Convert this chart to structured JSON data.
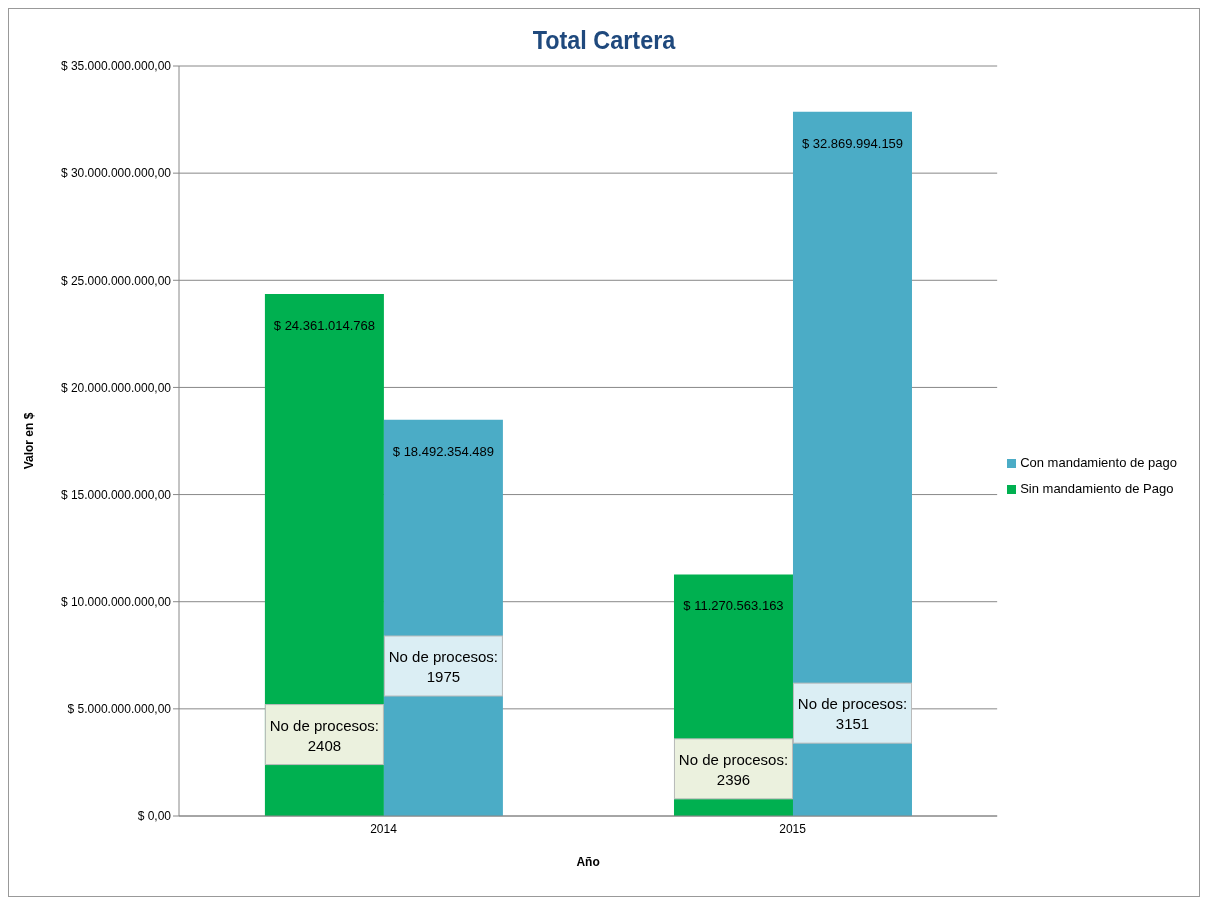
{
  "chart_data": {
    "type": "bar",
    "title": "Total Cartera",
    "xlabel": "Año",
    "ylabel": "Valor en $",
    "categories": [
      "2014",
      "2015"
    ],
    "series": [
      {
        "name": "Sin mandamiento de Pago",
        "color": "#00b050",
        "values": [
          24361014768,
          11270563163
        ],
        "value_labels": [
          "$ 24.361.014.768",
          "$ 11.270.563.163"
        ]
      },
      {
        "name": "Con mandamiento de pago",
        "color": "#4bacc6",
        "values": [
          18492354489,
          32869994159
        ],
        "value_labels": [
          "$ 18.492.354.489",
          "$ 32.869.994.159"
        ]
      }
    ],
    "ylim": [
      0,
      35000000000
    ],
    "yticks": [
      {
        "value": 0,
        "label": "$ 0,00"
      },
      {
        "value": 5000000000,
        "label": "$ 5.000.000.000,00"
      },
      {
        "value": 10000000000,
        "label": "$ 10.000.000.000,00"
      },
      {
        "value": 15000000000,
        "label": "$ 15.000.000.000,00"
      },
      {
        "value": 20000000000,
        "label": "$ 20.000.000.000,00"
      },
      {
        "value": 25000000000,
        "label": "$ 25.000.000.000,00"
      },
      {
        "value": 30000000000,
        "label": "$ 30.000.000.000,00"
      },
      {
        "value": 35000000000,
        "label": "$ 35.000.000.000,00"
      }
    ],
    "grid": "y",
    "legend": "right",
    "annotations": [
      {
        "text": "No de procesos:\n2408",
        "x": "2014",
        "y": 3800000000
      },
      {
        "text": "No de procesos:\n1975",
        "x": "2014",
        "y": 7000000000
      },
      {
        "text": "No de procesos:\n2396",
        "x": "2015",
        "y": 2200000000
      },
      {
        "text": "No de procesos:\n3151",
        "x": "2015",
        "y": 4800000000
      }
    ]
  }
}
